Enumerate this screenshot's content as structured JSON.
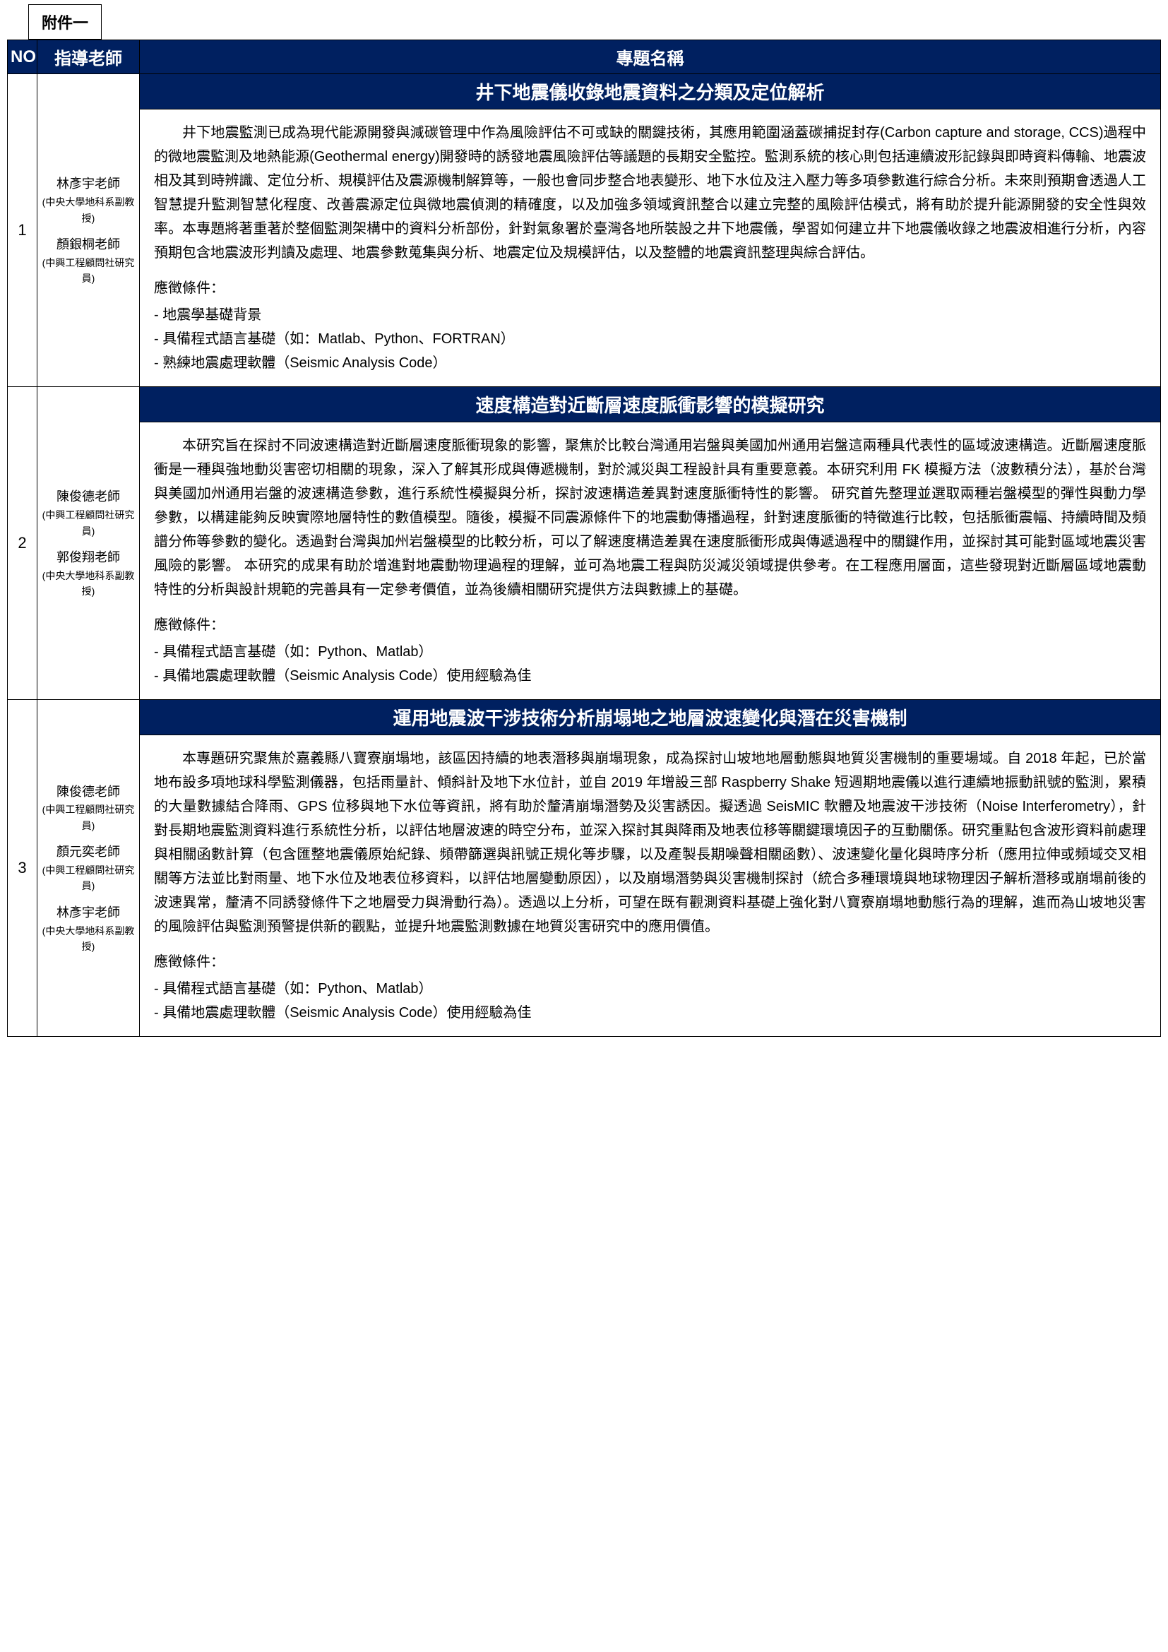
{
  "attachment_label": "附件一",
  "header": {
    "no": "NO",
    "advisor": "指導老師",
    "title": "專題名稱"
  },
  "rows": [
    {
      "no": "1",
      "advisors": [
        {
          "name": "林彥宇老師",
          "affil": "(中央大學地科系副教授)"
        },
        {
          "name": "顏銀桐老師",
          "affil": "(中興工程顧問社研究員)"
        }
      ],
      "title": "井下地震儀收錄地震資料之分類及定位解析",
      "body": "井下地震監測已成為現代能源開發與減碳管理中作為風險評估不可或缺的關鍵技術，其應用範圍涵蓋碳捕捉封存(Carbon capture and storage, CCS)過程中的微地震監測及地熱能源(Geothermal energy)開發時的誘發地震風險評估等議題的長期安全監控。監測系統的核心則包括連續波形記錄與即時資料傳輸、地震波相及其到時辨識、定位分析、規模評估及震源機制解算等，一般也會同步整合地表變形、地下水位及注入壓力等多項參數進行綜合分析。未來則預期會透過人工智慧提升監測智慧化程度、改善震源定位與微地震偵測的精確度，以及加強多領域資訊整合以建立完整的風險評估模式，將有助於提升能源開發的安全性與效率。本專題將著重著於整個監測架構中的資料分析部份，針對氣象署於臺灣各地所裝設之井下地震儀，學習如何建立井下地震儀收錄之地震波相進行分析，內容預期包含地震波形判讀及處理、地震參數蒐集與分析、地震定位及規模評估，以及整體的地震資訊整理與綜合評估。",
      "req_title": "應徵條件：",
      "reqs": [
        "地震學基礎背景",
        "具備程式語言基礎（如：Matlab、Python、FORTRAN）",
        "熟練地震處理軟體（Seismic Analysis Code）"
      ]
    },
    {
      "no": "2",
      "advisors": [
        {
          "name": "陳俊德老師",
          "affil": "(中興工程顧問社研究員)"
        },
        {
          "name": "郭俊翔老師",
          "affil": "(中央大學地科系副教授)"
        }
      ],
      "title": "速度構造對近斷層速度脈衝影響的模擬研究",
      "body": "本研究旨在探討不同波速構造對近斷層速度脈衝現象的影響，聚焦於比較台灣通用岩盤與美國加州通用岩盤這兩種具代表性的區域波速構造。近斷層速度脈衝是一種與強地動災害密切相關的現象，深入了解其形成與傳遞機制，對於減災與工程設計具有重要意義。本研究利用 FK 模擬方法（波數積分法），基於台灣與美國加州通用岩盤的波速構造參數，進行系統性模擬與分析，探討波速構造差異對速度脈衝特性的影響。 研究首先整理並選取兩種岩盤模型的彈性與動力學參數，以構建能夠反映實際地層特性的數值模型。隨後，模擬不同震源條件下的地震動傳播過程，針對速度脈衝的特徵進行比較，包括脈衝震幅、持續時間及頻譜分佈等參數的變化。透過對台灣與加州岩盤模型的比較分析，可以了解速度構造差異在速度脈衝形成與傳遞過程中的關鍵作用，並探討其可能對區域地震災害風險的影響。 本研究的成果有助於增進對地震動物理過程的理解，並可為地震工程與防災減災領域提供參考。在工程應用層面，這些發現對近斷層區域地震動特性的分析與設計規範的完善具有一定參考價值，並為後續相關研究提供方法與數據上的基礎。",
      "req_title": "應徵條件：",
      "reqs": [
        "具備程式語言基礎（如：Python、Matlab）",
        "具備地震處理軟體（Seismic Analysis Code）使用經驗為佳"
      ]
    },
    {
      "no": "3",
      "advisors": [
        {
          "name": "陳俊德老師",
          "affil": "(中興工程顧問社研究員)"
        },
        {
          "name": "顏元奕老師",
          "affil": "(中興工程顧問社研究員)"
        },
        {
          "name": "林彥宇老師",
          "affil": "(中央大學地科系副教授)"
        }
      ],
      "title": "運用地震波干涉技術分析崩塌地之地層波速變化與潛在災害機制",
      "body": "本專題研究聚焦於嘉義縣八寶寮崩塌地，該區因持續的地表潛移與崩塌現象，成為探討山坡地地層動態與地質災害機制的重要場域。自 2018 年起，已於當地布設多項地球科學監測儀器，包括雨量計、傾斜計及地下水位計，並自 2019 年增設三部 Raspberry Shake 短週期地震儀以進行連續地振動訊號的監測，累積的大量數據結合降雨、GPS 位移與地下水位等資訊，將有助於釐清崩塌潛勢及災害誘因。擬透過 SeisMIC 軟體及地震波干涉技術（Noise Interferometry），針對長期地震監測資料進行系統性分析，以評估地層波速的時空分布，並深入探討其與降雨及地表位移等關鍵環境因子的互動關係。研究重點包含波形資料前處理與相關函數計算（包含匯整地震儀原始紀錄、頻帶篩選與訊號正規化等步驟，以及產製長期噪聲相關函數）、波速變化量化與時序分析（應用拉伸或頻域交叉相關等方法並比對雨量、地下水位及地表位移資料，以評估地層變動原因），以及崩塌潛勢與災害機制探討（統合多種環境與地球物理因子解析潛移或崩塌前後的波速異常，釐清不同誘發條件下之地層受力與滑動行為）。透過以上分析，可望在既有觀測資料基礎上強化對八寶寮崩塌地動態行為的理解，進而為山坡地災害的風險評估與監測預警提供新的觀點，並提升地震監測數據在地質災害研究中的應用價值。",
      "req_title": "應徵條件：",
      "reqs": [
        "具備程式語言基礎（如：Python、Matlab）",
        "具備地震處理軟體（Seismic Analysis Code）使用經驗為佳"
      ]
    }
  ],
  "styles": {
    "header_bg": "#002060",
    "header_fg": "#ffffff",
    "border_color": "#000000",
    "body_font_size": 20,
    "title_font_size": 26,
    "header_font_size": 24
  }
}
